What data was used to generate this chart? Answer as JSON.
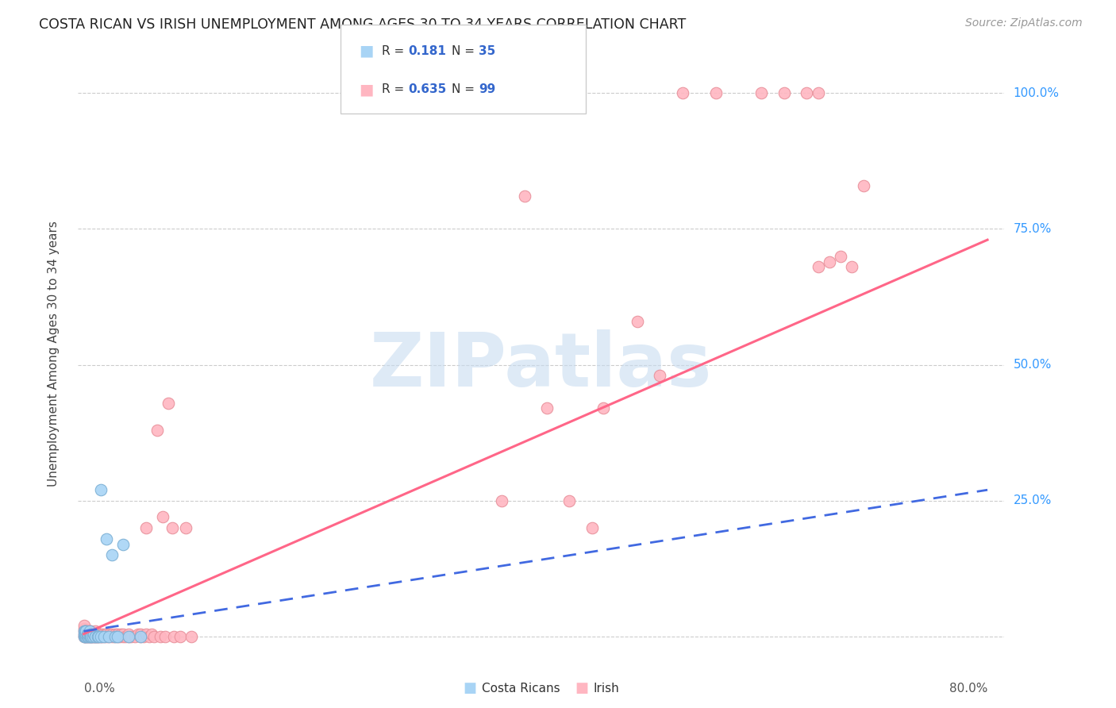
{
  "title": "COSTA RICAN VS IRISH UNEMPLOYMENT AMONG AGES 30 TO 34 YEARS CORRELATION CHART",
  "source": "Source: ZipAtlas.com",
  "ylabel": "Unemployment Among Ages 30 to 34 years",
  "legend_cr_R": "0.181",
  "legend_cr_N": "35",
  "legend_ir_R": "0.635",
  "legend_ir_N": "99",
  "cr_face_color": "#A8D4F5",
  "cr_edge_color": "#7BAFD4",
  "ir_face_color": "#FFB6C1",
  "ir_edge_color": "#E8909A",
  "cr_line_color": "#4169E1",
  "ir_line_color": "#FF6688",
  "watermark_color": "#DDEEFF",
  "watermark_text": "ZIPatlas",
  "ytick_vals": [
    0.0,
    0.25,
    0.5,
    0.75,
    1.0
  ],
  "ytick_labels": [
    "",
    "25.0%",
    "50.0%",
    "75.0%",
    "100.0%"
  ],
  "xmin": 0.0,
  "xmax": 0.8,
  "ymin": -0.04,
  "ymax": 1.08,
  "cr_x": [
    0.0,
    0.0,
    0.0,
    0.001,
    0.001,
    0.001,
    0.002,
    0.002,
    0.002,
    0.003,
    0.003,
    0.004,
    0.004,
    0.005,
    0.005,
    0.006,
    0.006,
    0.007,
    0.008,
    0.009,
    0.01,
    0.01,
    0.012,
    0.013,
    0.015,
    0.015,
    0.018,
    0.02,
    0.022,
    0.025,
    0.028,
    0.03,
    0.035,
    0.04,
    0.05
  ],
  "cr_y": [
    0.0,
    0.01,
    0.005,
    0.0,
    0.005,
    0.01,
    0.0,
    0.005,
    0.01,
    0.0,
    0.005,
    0.0,
    0.005,
    0.0,
    0.01,
    0.0,
    0.005,
    0.0,
    0.0,
    0.005,
    0.0,
    0.0,
    0.0,
    0.0,
    0.27,
    0.0,
    0.0,
    0.18,
    0.0,
    0.15,
    0.0,
    0.0,
    0.17,
    0.0,
    0.0
  ],
  "ir_x": [
    0.0,
    0.0,
    0.0,
    0.0,
    0.0,
    0.001,
    0.001,
    0.001,
    0.002,
    0.002,
    0.002,
    0.003,
    0.003,
    0.003,
    0.004,
    0.004,
    0.005,
    0.005,
    0.005,
    0.006,
    0.006,
    0.006,
    0.007,
    0.007,
    0.008,
    0.008,
    0.009,
    0.009,
    0.01,
    0.01,
    0.01,
    0.011,
    0.012,
    0.012,
    0.013,
    0.014,
    0.015,
    0.015,
    0.016,
    0.017,
    0.018,
    0.019,
    0.02,
    0.02,
    0.022,
    0.023,
    0.025,
    0.025,
    0.027,
    0.028,
    0.03,
    0.03,
    0.032,
    0.033,
    0.035,
    0.035,
    0.037,
    0.04,
    0.04,
    0.042,
    0.045,
    0.048,
    0.05,
    0.05,
    0.053,
    0.055,
    0.055,
    0.058,
    0.06,
    0.062,
    0.065,
    0.068,
    0.07,
    0.072,
    0.075,
    0.078,
    0.08,
    0.085,
    0.09,
    0.095,
    0.37,
    0.39,
    0.41,
    0.43,
    0.45,
    0.46,
    0.49,
    0.51,
    0.53,
    0.56,
    0.6,
    0.62,
    0.64,
    0.65,
    0.65,
    0.66,
    0.67,
    0.68,
    0.69
  ],
  "ir_y": [
    0.0,
    0.005,
    0.01,
    0.015,
    0.02,
    0.0,
    0.005,
    0.01,
    0.0,
    0.005,
    0.01,
    0.0,
    0.005,
    0.01,
    0.0,
    0.005,
    0.0,
    0.005,
    0.01,
    0.0,
    0.005,
    0.01,
    0.0,
    0.005,
    0.0,
    0.005,
    0.0,
    0.005,
    0.0,
    0.005,
    0.01,
    0.0,
    0.0,
    0.005,
    0.0,
    0.005,
    0.0,
    0.005,
    0.0,
    0.005,
    0.0,
    0.005,
    0.0,
    0.005,
    0.0,
    0.005,
    0.0,
    0.005,
    0.0,
    0.005,
    0.0,
    0.005,
    0.0,
    0.005,
    0.0,
    0.005,
    0.0,
    0.0,
    0.005,
    0.0,
    0.0,
    0.005,
    0.0,
    0.005,
    0.0,
    0.005,
    0.2,
    0.0,
    0.005,
    0.0,
    0.38,
    0.0,
    0.22,
    0.0,
    0.43,
    0.2,
    0.0,
    0.0,
    0.2,
    0.0,
    0.25,
    0.81,
    0.42,
    0.25,
    0.2,
    0.42,
    0.58,
    0.48,
    1.0,
    1.0,
    1.0,
    1.0,
    1.0,
    1.0,
    0.68,
    0.69,
    0.7,
    0.68,
    0.83
  ]
}
